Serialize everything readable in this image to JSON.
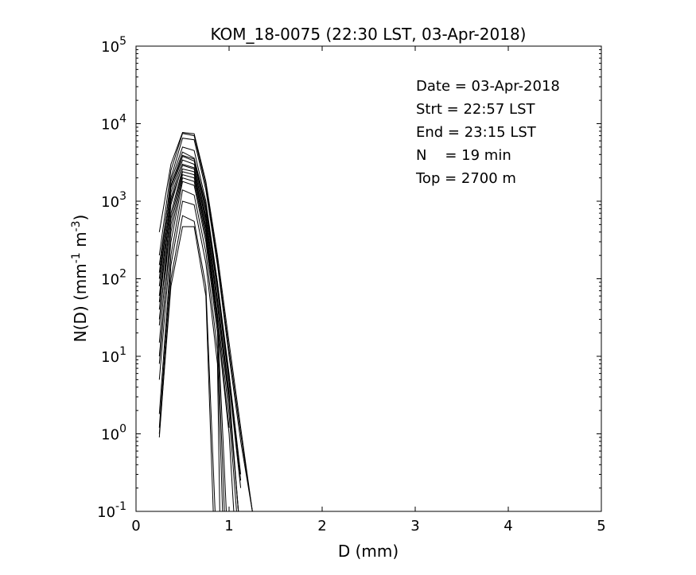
{
  "chart_data": {
    "type": "line",
    "title": "KOM_18-0075 (22:30 LST, 03-Apr-2018)",
    "xlabel": "D (mm)",
    "ylabel_base": "N(D) (mm",
    "ylabel_exp1": "-1",
    "ylabel_mid": " m",
    "ylabel_exp2": "-3",
    "ylabel_end": ")",
    "xlim": [
      0,
      5
    ],
    "ylim": [
      0.1,
      100000
    ],
    "yscale": "log",
    "grid": false,
    "x_ticks": [
      {
        "value": 0,
        "label": "0"
      },
      {
        "value": 1,
        "label": "1"
      },
      {
        "value": 2,
        "label": "2"
      },
      {
        "value": 3,
        "label": "3"
      },
      {
        "value": 4,
        "label": "4"
      },
      {
        "value": 5,
        "label": "5"
      }
    ],
    "y_ticks": [
      {
        "value": 0.1,
        "base": "10",
        "exp": "-1"
      },
      {
        "value": 1,
        "base": "10",
        "exp": "0"
      },
      {
        "value": 10,
        "base": "10",
        "exp": "1"
      },
      {
        "value": 100,
        "base": "10",
        "exp": "2"
      },
      {
        "value": 1000,
        "base": "10",
        "exp": "3"
      },
      {
        "value": 10000,
        "base": "10",
        "exp": "4"
      },
      {
        "value": 100000,
        "base": "10",
        "exp": "5"
      }
    ],
    "annotations": [
      "Date = 03-Apr-2018",
      "Strt = 22:57 LST",
      "End = 23:15 LST",
      "N    = 19 min",
      "Top = 2700 m"
    ],
    "series": [
      {
        "x": [
          0.25,
          0.375,
          0.5,
          0.625,
          0.75,
          0.875,
          1.0,
          1.125,
          1.25
        ],
        "y": [
          400,
          3000,
          7700,
          7400,
          1800,
          200,
          15,
          1.2,
          0.08
        ]
      },
      {
        "x": [
          0.25,
          0.375,
          0.5,
          0.625,
          0.75,
          0.875,
          1.0,
          1.125,
          1.25
        ],
        "y": [
          200,
          2500,
          7500,
          7000,
          1600,
          170,
          12,
          1.0,
          0.07
        ]
      },
      {
        "x": [
          0.25,
          0.375,
          0.5,
          0.625,
          0.75,
          0.875,
          1.0,
          1.125,
          1.25
        ],
        "y": [
          120,
          2000,
          6500,
          6200,
          1400,
          150,
          10,
          0.8,
          0.06
        ]
      },
      {
        "x": [
          0.25,
          0.375,
          0.5,
          0.625,
          0.75,
          0.875,
          1.0,
          1.125
        ],
        "y": [
          80,
          1600,
          4300,
          3600,
          900,
          90,
          6,
          0.3
        ]
      },
      {
        "x": [
          0.25,
          0.375,
          0.5,
          0.625,
          0.75,
          0.875,
          1.0,
          1.125
        ],
        "y": [
          60,
          1300,
          3800,
          3300,
          750,
          70,
          4.5,
          0.2
        ]
      },
      {
        "x": [
          0.25,
          0.375,
          0.5,
          0.625,
          0.75,
          0.875,
          1.0,
          1.1
        ],
        "y": [
          40,
          1100,
          3400,
          3000,
          650,
          55,
          3.5,
          0.1
        ]
      },
      {
        "x": [
          0.25,
          0.375,
          0.5,
          0.625,
          0.75,
          0.875,
          1.0,
          1.1
        ],
        "y": [
          25,
          900,
          3000,
          2700,
          550,
          45,
          2.5,
          0.1
        ]
      },
      {
        "x": [
          0.25,
          0.375,
          0.5,
          0.625,
          0.75,
          0.875,
          1.0,
          1.08
        ],
        "y": [
          15,
          700,
          2600,
          2400,
          480,
          35,
          1.8,
          0.1
        ]
      },
      {
        "x": [
          0.25,
          0.375,
          0.5,
          0.625,
          0.75,
          0.875,
          1.0
        ],
        "y": [
          8,
          500,
          2200,
          2000,
          400,
          28,
          1.2
        ]
      },
      {
        "x": [
          0.25,
          0.375,
          0.5,
          0.625,
          0.75,
          0.875,
          0.95
        ],
        "y": [
          5,
          300,
          1800,
          1600,
          300,
          20,
          0.1
        ]
      },
      {
        "x": [
          0.25,
          0.375,
          0.5,
          0.625,
          0.75,
          0.875,
          0.93
        ],
        "y": [
          1.8,
          200,
          1400,
          1200,
          220,
          12,
          0.1
        ]
      },
      {
        "x": [
          0.25,
          0.375,
          0.5,
          0.625,
          0.75,
          0.875,
          0.9
        ],
        "y": [
          1.2,
          150,
          1000,
          900,
          160,
          8,
          0.1
        ]
      },
      {
        "x": [
          0.25,
          0.375,
          0.5,
          0.625,
          0.75,
          0.85
        ],
        "y": [
          0.9,
          100,
          650,
          550,
          80,
          0.1
        ]
      },
      {
        "x": [
          0.25,
          0.375,
          0.5,
          0.625,
          0.75,
          0.83
        ],
        "y": [
          1.0,
          80,
          470,
          470,
          60,
          0.1
        ]
      },
      {
        "x": [
          0.25,
          0.375,
          0.5,
          0.625,
          0.75,
          0.875,
          1.0
        ],
        "y": [
          150,
          1800,
          5000,
          4500,
          1000,
          90,
          5
        ]
      },
      {
        "x": [
          0.25,
          0.375,
          0.5,
          0.625,
          0.75,
          0.875,
          1.0,
          1.125
        ],
        "y": [
          100,
          1500,
          3900,
          3500,
          800,
          80,
          5,
          0.25
        ]
      },
      {
        "x": [
          0.25,
          0.375,
          0.5,
          0.625,
          0.75,
          0.875,
          1.0,
          1.1
        ],
        "y": [
          50,
          1000,
          2900,
          2600,
          600,
          50,
          3,
          0.1
        ]
      },
      {
        "x": [
          0.25,
          0.375,
          0.5,
          0.625,
          0.75,
          0.875,
          0.97
        ],
        "y": [
          30,
          600,
          2400,
          2200,
          450,
          30,
          0.1
        ]
      },
      {
        "x": [
          0.25,
          0.375,
          0.5,
          0.625,
          0.75,
          0.875,
          1.0,
          1.05
        ],
        "y": [
          10,
          400,
          2000,
          1800,
          350,
          25,
          1.0,
          0.1
        ]
      }
    ]
  }
}
